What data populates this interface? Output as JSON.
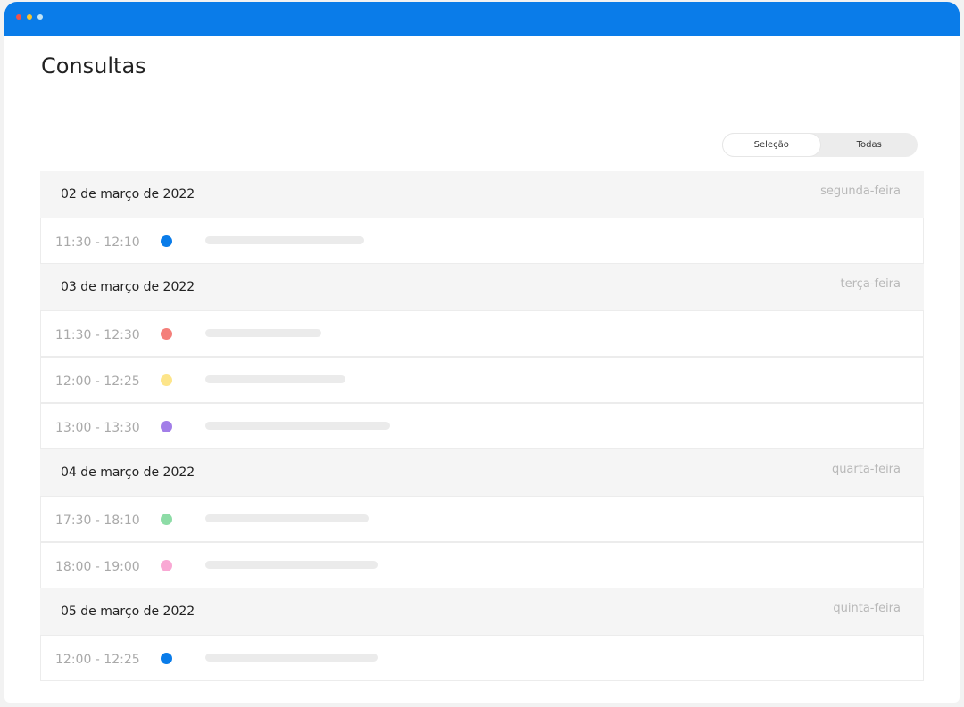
{
  "window": {
    "title_bar_color": "#0a7ce9",
    "controls": [
      "close",
      "minimize",
      "maximize"
    ]
  },
  "page_title": "Consultas",
  "filter": {
    "options": [
      "Seleção",
      "Todas"
    ],
    "selected": "Seleção"
  },
  "days": [
    {
      "date": "02 de março de 2022",
      "weekday": "segunda-feira",
      "appointments": [
        {
          "time": "11:30 - 12:10",
          "color": "#0a7ce9"
        }
      ]
    },
    {
      "date": "03 de março de 2022",
      "weekday": "terça-feira",
      "appointments": [
        {
          "time": "11:30 - 12:30",
          "color": "#f47f7a"
        },
        {
          "time": "12:00 - 12:25",
          "color": "#fde58a"
        },
        {
          "time": "13:00 - 13:30",
          "color": "#a27ee8"
        }
      ]
    },
    {
      "date": "04 de março de 2022",
      "weekday": "quarta-feira",
      "appointments": [
        {
          "time": "17:30 - 18:10",
          "color": "#8ddca6"
        },
        {
          "time": "18:00 - 19:00",
          "color": "#f9a8d4"
        }
      ]
    },
    {
      "date": "05 de março de 2022",
      "weekday": "quinta-feira",
      "appointments": [
        {
          "time": "12:00 - 12:25",
          "color": "#0a7ce9"
        }
      ]
    }
  ]
}
